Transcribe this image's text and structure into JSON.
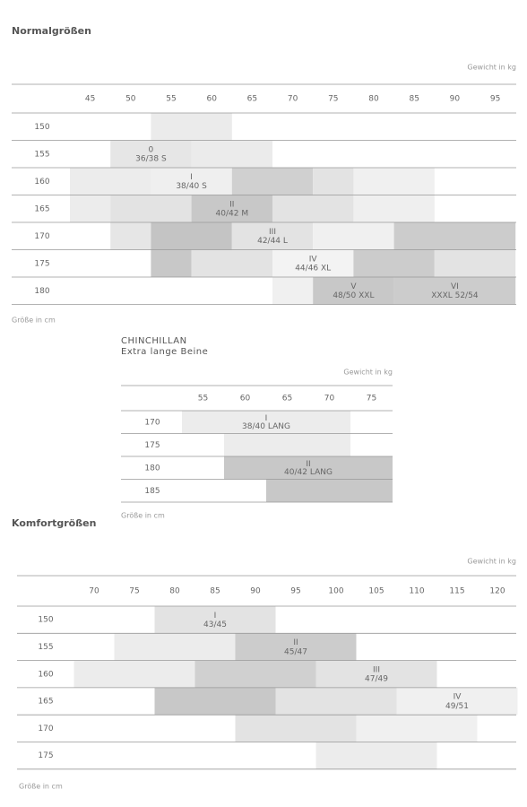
{
  "tables": [
    {
      "title": "Normalgrößen",
      "weight_label": "Gewicht in kg",
      "height_label": "Größe in cm",
      "weights": [
        45,
        50,
        55,
        60,
        65,
        70,
        75,
        80,
        85,
        90,
        95
      ],
      "rows": [
        {
          "height": 150,
          "bands": [
            {
              "from": 52.5,
              "to": 62.5,
              "color": "#ebebeb"
            }
          ]
        },
        {
          "height": 155,
          "bands": [
            {
              "from": 47.5,
              "to": 57.5,
              "color": "#e6e6e6",
              "label": [
                "0",
                "36/38 S"
              ]
            },
            {
              "from": 57.5,
              "to": 67.5,
              "color": "#ebebeb"
            }
          ]
        },
        {
          "height": 160,
          "bands": [
            {
              "from": 42.5,
              "to": 52.5,
              "color": "#ececec"
            },
            {
              "from": 52.5,
              "to": 62.5,
              "color": "#efefef",
              "label": [
                "I",
                "38/40 S"
              ]
            },
            {
              "from": 62.5,
              "to": 72.5,
              "color": "#d0d0d0"
            },
            {
              "from": 72.5,
              "to": 77.5,
              "color": "#e3e3e3"
            },
            {
              "from": 77.5,
              "to": 87.5,
              "color": "#f0f0f0"
            }
          ]
        },
        {
          "height": 165,
          "bands": [
            {
              "from": 42.5,
              "to": 47.5,
              "color": "#ececec"
            },
            {
              "from": 47.5,
              "to": 57.5,
              "color": "#e3e3e3"
            },
            {
              "from": 57.5,
              "to": 67.5,
              "color": "#c8c8c8",
              "label": [
                "II",
                "40/42 M"
              ]
            },
            {
              "from": 67.5,
              "to": 77.5,
              "color": "#e3e3e3"
            },
            {
              "from": 77.5,
              "to": 87.5,
              "color": "#efefef"
            }
          ]
        },
        {
          "height": 170,
          "bands": [
            {
              "from": 47.5,
              "to": 52.5,
              "color": "#e6e6e6"
            },
            {
              "from": 52.5,
              "to": 62.5,
              "color": "#c4c4c4"
            },
            {
              "from": 62.5,
              "to": 72.5,
              "color": "#e3e3e3",
              "label": [
                "III",
                "42/44 L"
              ]
            },
            {
              "from": 72.5,
              "to": 82.5,
              "color": "#f0f0f0"
            },
            {
              "from": 82.5,
              "to": 97.5,
              "color": "#cccccc"
            }
          ]
        },
        {
          "height": 175,
          "bands": [
            {
              "from": 52.5,
              "to": 57.5,
              "color": "#c8c8c8"
            },
            {
              "from": 57.5,
              "to": 67.5,
              "color": "#e3e3e3"
            },
            {
              "from": 67.5,
              "to": 77.5,
              "color": "#f3f3f3",
              "label": [
                "IV",
                "44/46 XL"
              ]
            },
            {
              "from": 77.5,
              "to": 87.5,
              "color": "#cccccc"
            },
            {
              "from": 87.5,
              "to": 97.5,
              "color": "#e3e3e3"
            }
          ]
        },
        {
          "height": 180,
          "bands": [
            {
              "from": 67.5,
              "to": 72.5,
              "color": "#f0f0f0"
            },
            {
              "from": 72.5,
              "to": 82.5,
              "color": "#c8c8c8",
              "label": [
                "V",
                "48/50 XXL"
              ]
            },
            {
              "from": 82.5,
              "to": 97.5,
              "color": "#cccccc",
              "label": [
                "VI",
                "XXXL 52/54"
              ]
            }
          ]
        }
      ]
    },
    {
      "title": "CHINCHILLAN",
      "subtitle": "Extra lange Beine",
      "weight_label": "Gewicht in kg",
      "height_label": "Größe in cm",
      "weights": [
        55,
        60,
        65,
        70,
        75
      ],
      "rows": [
        {
          "height": 170,
          "bands": [
            {
              "from": 52.5,
              "to": 72.5,
              "color": "#ececec",
              "label": [
                "I",
                "38/40 LANG"
              ]
            }
          ]
        },
        {
          "height": 175,
          "bands": [
            {
              "from": 57.5,
              "to": 72.5,
              "color": "#ececec"
            }
          ]
        },
        {
          "height": 180,
          "bands": [
            {
              "from": 57.5,
              "to": 77.5,
              "color": "#c8c8c8",
              "label": [
                "II",
                "40/42 LANG"
              ]
            }
          ]
        },
        {
          "height": 185,
          "bands": [
            {
              "from": 62.5,
              "to": 77.5,
              "color": "#c8c8c8"
            }
          ]
        }
      ]
    },
    {
      "title": "Komfortgrößen",
      "weight_label": "Gewicht in kg",
      "height_label": "Größe in cm",
      "weights": [
        70,
        75,
        80,
        85,
        90,
        95,
        100,
        105,
        110,
        115,
        120
      ],
      "rows": [
        {
          "height": 150,
          "bands": [
            {
              "from": 77.5,
              "to": 92.5,
              "color": "#e3e3e3",
              "label": [
                "I",
                "43/45"
              ]
            }
          ]
        },
        {
          "height": 155,
          "bands": [
            {
              "from": 72.5,
              "to": 87.5,
              "color": "#ececec"
            },
            {
              "from": 87.5,
              "to": 102.5,
              "color": "#cccccc",
              "label": [
                "II",
                "45/47"
              ]
            }
          ]
        },
        {
          "height": 160,
          "bands": [
            {
              "from": 67.5,
              "to": 82.5,
              "color": "#ececec"
            },
            {
              "from": 82.5,
              "to": 97.5,
              "color": "#d0d0d0"
            },
            {
              "from": 97.5,
              "to": 112.5,
              "color": "#e3e3e3",
              "label": [
                "III",
                "47/49"
              ]
            }
          ]
        },
        {
          "height": 165,
          "bands": [
            {
              "from": 77.5,
              "to": 92.5,
              "color": "#c8c8c8"
            },
            {
              "from": 92.5,
              "to": 107.5,
              "color": "#e3e3e3"
            },
            {
              "from": 107.5,
              "to": 122.5,
              "color": "#f0f0f0",
              "label": [
                "IV",
                "49/51"
              ]
            }
          ]
        },
        {
          "height": 170,
          "bands": [
            {
              "from": 87.5,
              "to": 102.5,
              "color": "#e3e3e3"
            },
            {
              "from": 102.5,
              "to": 117.5,
              "color": "#f0f0f0"
            }
          ]
        },
        {
          "height": 175,
          "bands": [
            {
              "from": 97.5,
              "to": 112.5,
              "color": "#ececec"
            }
          ]
        }
      ]
    }
  ]
}
